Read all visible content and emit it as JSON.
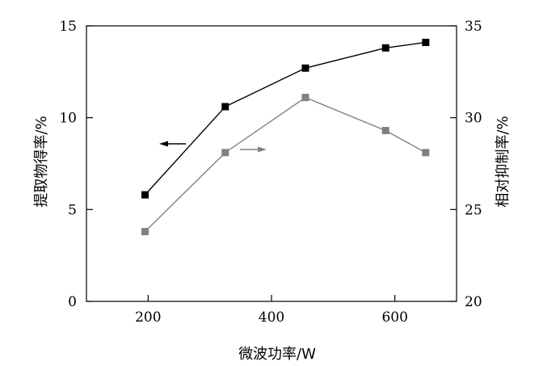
{
  "chart_data": {
    "type": "line",
    "title": "",
    "xlabel": "微波功率/W",
    "ylabel_left": "提取物得率/%",
    "ylabel_right": "相对抑制率/%",
    "xlim": [
      100,
      700
    ],
    "ylim_left": [
      0,
      15
    ],
    "ylim_right": [
      20,
      35
    ],
    "x_ticks": [
      200,
      400,
      600
    ],
    "y_left_ticks": [
      0,
      5,
      10,
      15
    ],
    "y_right_ticks": [
      20,
      25,
      30,
      35
    ],
    "grid": false,
    "legend": "none",
    "series": [
      {
        "axis": "left",
        "color": "#000000",
        "x": [
          195,
          325,
          455,
          585,
          650
        ],
        "values": [
          5.8,
          10.6,
          12.7,
          13.8,
          14.1
        ]
      },
      {
        "axis": "right",
        "color": "#808080",
        "x": [
          195,
          325,
          455,
          585,
          650
        ],
        "values": [
          23.8,
          28.1,
          31.1,
          29.3,
          28.1
        ]
      }
    ],
    "annotations": [
      {
        "type": "arrow",
        "direction": "left",
        "series_index": 0,
        "color": "#000000"
      },
      {
        "type": "arrow",
        "direction": "right",
        "series_index": 1,
        "color": "#808080"
      }
    ]
  }
}
